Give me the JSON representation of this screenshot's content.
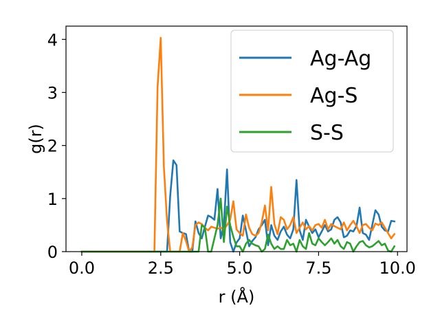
{
  "chart_data": {
    "type": "line",
    "xlabel": "r (Å)",
    "ylabel": "g(r)",
    "xlim": [
      -0.5,
      10.3
    ],
    "ylim": [
      0,
      4.25
    ],
    "xticks": [
      "0.0",
      "2.5",
      "5.0",
      "7.5",
      "10.0"
    ],
    "yticks": [
      "0",
      "1",
      "2",
      "3",
      "4"
    ],
    "grid": false,
    "legend_position": "top-right",
    "series": [
      {
        "name": "Ag-Ag",
        "color": "#1f77b4",
        "x": [
          0.0,
          2.6,
          2.7,
          2.8,
          2.9,
          3.0,
          3.1,
          3.2,
          3.3,
          3.4,
          3.5,
          3.6,
          3.7,
          3.8,
          3.9,
          4.0,
          4.1,
          4.2,
          4.3,
          4.4,
          4.5,
          4.6,
          4.7,
          4.8,
          4.9,
          5.0,
          5.1,
          5.2,
          5.3,
          5.4,
          5.5,
          5.6,
          5.7,
          5.8,
          5.9,
          6.0,
          6.1,
          6.2,
          6.3,
          6.4,
          6.5,
          6.6,
          6.7,
          6.8,
          6.9,
          7.0,
          7.1,
          7.2,
          7.3,
          7.4,
          7.5,
          7.6,
          7.7,
          7.8,
          7.9,
          8.0,
          8.1,
          8.2,
          8.3,
          8.4,
          8.5,
          8.6,
          8.7,
          8.8,
          8.9,
          9.0,
          9.1,
          9.2,
          9.3,
          9.4,
          9.5,
          9.6,
          9.7,
          9.8,
          9.9
        ],
        "y": [
          0.0,
          0.0,
          0.0,
          1.05,
          1.72,
          1.63,
          0.38,
          0.35,
          0.33,
          0.0,
          0.0,
          0.57,
          0.35,
          0.25,
          0.47,
          0.68,
          0.65,
          0.6,
          1.18,
          0.25,
          0.5,
          1.55,
          0.18,
          0.0,
          0.17,
          0.25,
          0.68,
          0.4,
          0.1,
          0.2,
          0.27,
          0.42,
          0.5,
          0.6,
          0.12,
          0.5,
          0.3,
          0.22,
          0.38,
          0.47,
          0.32,
          0.25,
          0.42,
          1.35,
          0.4,
          0.22,
          0.6,
          0.47,
          0.35,
          0.42,
          0.27,
          0.38,
          0.5,
          0.38,
          0.42,
          0.6,
          0.65,
          0.55,
          0.27,
          0.3,
          0.4,
          0.38,
          0.48,
          0.83,
          0.35,
          0.32,
          0.22,
          0.5,
          0.78,
          0.7,
          0.47,
          0.4,
          0.38,
          0.58,
          0.57
        ]
      },
      {
        "name": "Ag-S",
        "color": "#ff7f0e",
        "x": [
          0.0,
          2.3,
          2.4,
          2.5,
          2.6,
          2.7,
          2.8,
          2.9,
          3.0,
          3.1,
          3.2,
          3.3,
          3.4,
          3.5,
          3.6,
          3.7,
          3.8,
          3.9,
          4.0,
          4.1,
          4.2,
          4.3,
          4.4,
          4.5,
          4.6,
          4.7,
          4.8,
          4.9,
          5.0,
          5.1,
          5.2,
          5.3,
          5.4,
          5.5,
          5.6,
          5.7,
          5.8,
          5.9,
          6.0,
          6.1,
          6.2,
          6.3,
          6.4,
          6.5,
          6.6,
          6.7,
          6.8,
          6.9,
          7.0,
          7.1,
          7.2,
          7.3,
          7.4,
          7.5,
          7.6,
          7.7,
          7.8,
          7.9,
          8.0,
          8.1,
          8.2,
          8.3,
          8.4,
          8.5,
          8.6,
          8.7,
          8.8,
          8.9,
          9.0,
          9.1,
          9.2,
          9.3,
          9.4,
          9.5,
          9.6,
          9.7,
          9.8,
          9.9
        ],
        "y": [
          0.0,
          0.0,
          3.1,
          4.03,
          1.6,
          0.58,
          0.0,
          0.0,
          0.0,
          0.0,
          0.35,
          0.2,
          0.0,
          0.08,
          0.5,
          0.55,
          0.52,
          0.45,
          0.4,
          0.47,
          0.45,
          0.43,
          0.45,
          0.42,
          0.5,
          0.6,
          0.95,
          0.42,
          0.35,
          0.3,
          0.7,
          0.45,
          0.33,
          0.3,
          0.35,
          0.55,
          0.87,
          0.4,
          1.22,
          0.52,
          0.33,
          0.65,
          0.6,
          0.42,
          0.5,
          0.65,
          0.35,
          0.45,
          0.55,
          0.42,
          0.48,
          0.4,
          0.5,
          0.52,
          0.45,
          0.6,
          0.42,
          0.52,
          0.48,
          0.45,
          0.42,
          0.55,
          0.4,
          0.5,
          0.58,
          0.48,
          0.35,
          0.5,
          0.52,
          0.45,
          0.4,
          0.53,
          0.5,
          0.55,
          0.45,
          0.35,
          0.25,
          0.33
        ]
      },
      {
        "name": "S-S",
        "color": "#2ca02c",
        "x": [
          0.0,
          3.7,
          3.8,
          3.9,
          4.0,
          4.1,
          4.2,
          4.3,
          4.4,
          4.5,
          4.6,
          4.7,
          4.8,
          4.9,
          5.0,
          5.1,
          5.2,
          5.3,
          5.4,
          5.5,
          5.6,
          5.7,
          5.8,
          5.9,
          6.0,
          6.1,
          6.2,
          6.3,
          6.4,
          6.5,
          6.6,
          6.7,
          6.8,
          6.9,
          7.0,
          7.1,
          7.2,
          7.3,
          7.4,
          7.5,
          7.6,
          7.7,
          7.8,
          7.9,
          8.0,
          8.1,
          8.2,
          8.3,
          8.4,
          8.5,
          8.6,
          8.7,
          8.8,
          8.9,
          9.0,
          9.1,
          9.2,
          9.3,
          9.4,
          9.5,
          9.6,
          9.7,
          9.8,
          9.9
        ],
        "y": [
          0.0,
          0.0,
          0.5,
          0.45,
          0.0,
          0.0,
          0.25,
          0.5,
          1.0,
          0.18,
          0.85,
          0.5,
          0.28,
          0.1,
          0.1,
          0.0,
          0.15,
          0.22,
          0.15,
          0.12,
          0.1,
          0.0,
          0.05,
          0.32,
          0.15,
          0.05,
          0.1,
          0.05,
          0.05,
          0.22,
          0.12,
          0.15,
          0.0,
          0.22,
          0.1,
          0.05,
          0.35,
          0.15,
          0.12,
          0.25,
          0.18,
          0.12,
          0.18,
          0.25,
          0.15,
          0.22,
          0.1,
          0.05,
          0.18,
          0.15,
          0.0,
          0.1,
          0.18,
          0.2,
          0.12,
          0.08,
          0.1,
          0.15,
          0.2,
          0.12,
          0.15,
          0.02,
          0.0,
          0.1
        ]
      }
    ]
  }
}
